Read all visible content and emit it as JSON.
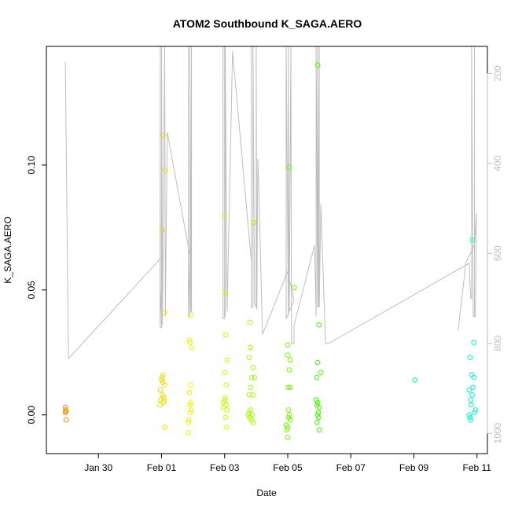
{
  "chart_data": {
    "type": "scatter",
    "title": "ATOM2 Southbound K_SAGA.AERO",
    "xlabel": "Date",
    "ylabel": "K_SAGA.AERO",
    "xlim": [
      -0.65,
      13.33
    ],
    "ylim": [
      -0.0155,
      0.1475
    ],
    "x_origin_date": "2017-01-29",
    "x_ticks": [
      {
        "value": 1,
        "label": "Jan 30"
      },
      {
        "value": 3,
        "label": "Feb 01"
      },
      {
        "value": 5,
        "label": "Feb 03"
      },
      {
        "value": 7,
        "label": "Feb 05"
      },
      {
        "value": 9,
        "label": "Feb 07"
      },
      {
        "value": 11,
        "label": "Feb 09"
      },
      {
        "value": 13,
        "label": "Feb 11"
      }
    ],
    "y_ticks": [
      {
        "value": 0.0,
        "label": "0.00"
      },
      {
        "value": 0.05,
        "label": "0.05"
      },
      {
        "value": 0.1,
        "label": "0.10"
      }
    ],
    "right_axis": {
      "label": "",
      "lim": [
        1045,
        140
      ],
      "ticks": [
        {
          "value": 200,
          "label": "200"
        },
        {
          "value": 400,
          "label": "400"
        },
        {
          "value": 600,
          "label": "600"
        },
        {
          "value": 800,
          "label": "800"
        },
        {
          "value": 1000,
          "label": "1000"
        }
      ],
      "color": "#bebebe"
    },
    "colors": {
      "axis": "#000000",
      "right_axis": "#bebebe",
      "track_line": "#bebebe",
      "point_early": "#ff8c00",
      "point_late": "#00ffcc"
    },
    "points": [
      [
        -0.05,
        0.003
      ],
      [
        -0.04,
        0.002
      ],
      [
        -0.05,
        0.001
      ],
      [
        -0.03,
        0.0015
      ],
      [
        -0.02,
        -0.002
      ],
      [
        2.95,
        0.004
      ],
      [
        2.97,
        0.006
      ],
      [
        2.96,
        0.01
      ],
      [
        3.0,
        0.014
      ],
      [
        3.02,
        0.015
      ],
      [
        3.05,
        0.016
      ],
      [
        3.03,
        0.008
      ],
      [
        3.06,
        0.005
      ],
      [
        3.08,
        0.006
      ],
      [
        3.1,
        0.012
      ],
      [
        3.04,
        0.013
      ],
      [
        3.07,
        0.007
      ],
      [
        3.02,
        0.074
      ],
      [
        3.05,
        0.112
      ],
      [
        3.12,
        0.098
      ],
      [
        3.1,
        0.041
      ],
      [
        3.1,
        -0.005
      ],
      [
        3.85,
        -0.003
      ],
      [
        3.87,
        -0.002
      ],
      [
        3.85,
        -0.007
      ],
      [
        3.9,
        0.001
      ],
      [
        3.9,
        0.004
      ],
      [
        3.88,
        0.009
      ],
      [
        3.92,
        0.012
      ],
      [
        3.95,
        0.002
      ],
      [
        3.93,
        0.005
      ],
      [
        3.88,
        0.03
      ],
      [
        3.9,
        0.029
      ],
      [
        3.95,
        0.027
      ],
      [
        3.92,
        0.04
      ],
      [
        4.95,
        0.003
      ],
      [
        4.97,
        0.005
      ],
      [
        5.0,
        0.006
      ],
      [
        5.02,
        0.007
      ],
      [
        5.05,
        0.004
      ],
      [
        5.08,
        0.002
      ],
      [
        5.0,
        0.017
      ],
      [
        5.05,
        0.012
      ],
      [
        5.08,
        0.022
      ],
      [
        5.04,
        0.032
      ],
      [
        5.03,
        -0.001
      ],
      [
        5.06,
        -0.005
      ],
      [
        5.0,
        0.08
      ],
      [
        5.02,
        0.049
      ],
      [
        5.75,
        0.0
      ],
      [
        5.78,
        0.001
      ],
      [
        5.8,
        -0.001
      ],
      [
        5.82,
        0.002
      ],
      [
        5.85,
        -0.002
      ],
      [
        5.88,
        0.0
      ],
      [
        5.9,
        -0.003
      ],
      [
        5.78,
        0.008
      ],
      [
        5.82,
        0.011
      ],
      [
        5.85,
        0.015
      ],
      [
        5.9,
        0.008
      ],
      [
        5.95,
        0.015
      ],
      [
        5.78,
        0.023
      ],
      [
        5.82,
        0.027
      ],
      [
        5.9,
        0.019
      ],
      [
        5.8,
        0.037
      ],
      [
        5.92,
        0.077
      ],
      [
        6.95,
        -0.004
      ],
      [
        6.97,
        -0.006
      ],
      [
        7.0,
        -0.005
      ],
      [
        7.02,
        0.002
      ],
      [
        7.05,
        0.0
      ],
      [
        7.08,
        -0.002
      ],
      [
        7.0,
        -0.009
      ],
      [
        7.02,
        0.011
      ],
      [
        7.08,
        0.011
      ],
      [
        7.05,
        0.018
      ],
      [
        7.0,
        0.024
      ],
      [
        7.08,
        0.022
      ],
      [
        7.0,
        0.028
      ],
      [
        7.03,
        -0.001
      ],
      [
        7.05,
        0.099
      ],
      [
        7.2,
        0.051
      ],
      [
        7.9,
        0.006
      ],
      [
        7.93,
        0.004
      ],
      [
        7.95,
        0.005
      ],
      [
        7.97,
        0.001
      ],
      [
        8.0,
        0.003
      ],
      [
        7.95,
        0.0
      ],
      [
        7.98,
        -0.001
      ],
      [
        7.93,
        -0.003
      ],
      [
        8.0,
        -0.006
      ],
      [
        7.92,
        0.015
      ],
      [
        7.95,
        0.021
      ],
      [
        8.05,
        0.017
      ],
      [
        7.95,
        0.14
      ],
      [
        7.99,
        0.036
      ],
      [
        11.03,
        0.014
      ],
      [
        12.75,
        0.01
      ],
      [
        12.8,
        0.006
      ],
      [
        12.82,
        0.004
      ],
      [
        12.85,
        0.008
      ],
      [
        12.87,
        0.011
      ],
      [
        12.9,
        0.015
      ],
      [
        12.92,
        0.001
      ],
      [
        12.8,
        -0.002
      ],
      [
        12.78,
        -0.001
      ],
      [
        12.75,
        0.0
      ],
      [
        12.83,
        0.016
      ],
      [
        12.9,
        0.029
      ],
      [
        12.78,
        0.023
      ],
      [
        12.85,
        0.07
      ],
      [
        12.95,
        0.002
      ]
    ],
    "track": [
      [
        -0.05,
        175
      ],
      [
        0.05,
        834
      ],
      [
        3.05,
        605
      ],
      [
        2.95,
        756
      ],
      [
        2.96,
        140
      ],
      [
        2.96,
        765
      ],
      [
        3.0,
        765
      ],
      [
        3.0,
        140
      ],
      [
        3.03,
        760
      ],
      [
        3.1,
        140
      ],
      [
        3.12,
        740
      ],
      [
        3.18,
        330
      ],
      [
        3.9,
        605
      ],
      [
        3.85,
        740
      ],
      [
        3.85,
        140
      ],
      [
        3.85,
        740
      ],
      [
        3.9,
        740
      ],
      [
        3.9,
        140
      ],
      [
        3.93,
        730
      ],
      [
        3.95,
        140
      ],
      [
        3.95,
        730
      ],
      [
        3.95,
        140
      ],
      [
        4.95,
        140
      ],
      [
        4.95,
        745
      ],
      [
        5.0,
        745
      ],
      [
        5.0,
        140
      ],
      [
        5.02,
        740
      ],
      [
        5.02,
        140
      ],
      [
        5.08,
        730
      ],
      [
        5.25,
        150
      ],
      [
        5.85,
        620
      ],
      [
        5.85,
        140
      ],
      [
        5.85,
        720
      ],
      [
        5.9,
        720
      ],
      [
        5.9,
        140
      ],
      [
        5.95,
        710
      ],
      [
        6.0,
        720
      ],
      [
        6.0,
        140
      ],
      [
        6.02,
        725
      ],
      [
        6.05,
        390
      ],
      [
        6.08,
        450
      ],
      [
        6.2,
        780
      ],
      [
        7.0,
        640
      ],
      [
        7.2,
        705
      ],
      [
        6.95,
        745
      ],
      [
        6.95,
        140
      ],
      [
        7.02,
        740
      ],
      [
        7.02,
        140
      ],
      [
        7.05,
        730
      ],
      [
        7.1,
        140
      ],
      [
        7.12,
        800
      ],
      [
        7.2,
        800
      ],
      [
        7.2,
        760
      ],
      [
        7.85,
        582
      ],
      [
        7.9,
        740
      ],
      [
        7.9,
        140
      ],
      [
        7.95,
        720
      ],
      [
        7.95,
        140
      ],
      [
        7.98,
        720
      ],
      [
        8.0,
        140
      ],
      [
        8.0,
        720
      ],
      [
        8.05,
        490
      ],
      [
        8.2,
        800
      ],
      [
        8.3,
        800
      ],
      [
        12.75,
        622
      ],
      [
        12.8,
        700
      ],
      [
        12.83,
        700
      ],
      [
        12.83,
        140
      ],
      [
        12.88,
        740
      ],
      [
        12.92,
        740
      ],
      [
        12.92,
        140
      ],
      [
        12.92,
        740
      ],
      [
        12.95,
        740
      ],
      [
        12.98,
        510
      ],
      [
        12.92,
        582
      ],
      [
        12.65,
        620
      ],
      [
        12.4,
        772
      ]
    ]
  }
}
